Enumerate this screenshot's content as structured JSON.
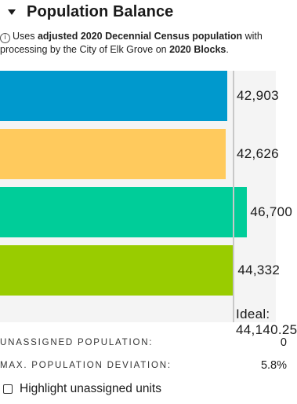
{
  "header": {
    "title": "Population Balance",
    "caret_icon": "caret-down-icon"
  },
  "note": {
    "icon": "ⓘ",
    "t1": "Uses ",
    "b1": "adjusted 2020 Decennial Census population",
    "t2": " with processing by the City of Elk Grove on ",
    "b2": "2020 Blocks",
    "t3": "."
  },
  "chart_data": {
    "type": "bar",
    "orientation": "horizontal",
    "categories": [
      "",
      "",
      "",
      ""
    ],
    "values": [
      42903,
      42626,
      46700,
      44332
    ],
    "labels": [
      "42,903",
      "42,626",
      "46,700",
      "44,332"
    ],
    "colors": [
      "#0099cd",
      "#ffca5d",
      "#00cd99",
      "#99cc00"
    ],
    "ideal": 44140.25,
    "ideal_label": "Ideal: 44,140.25",
    "xlim": [
      0,
      54500
    ]
  },
  "stats": {
    "unassigned_label": "UNASSIGNED POPULATION:",
    "unassigned_value": "0",
    "deviation_label": "MAX. POPULATION DEVIATION:",
    "deviation_value": "5.8%"
  },
  "highlight": {
    "label": "Highlight unassigned units",
    "checked": false
  }
}
